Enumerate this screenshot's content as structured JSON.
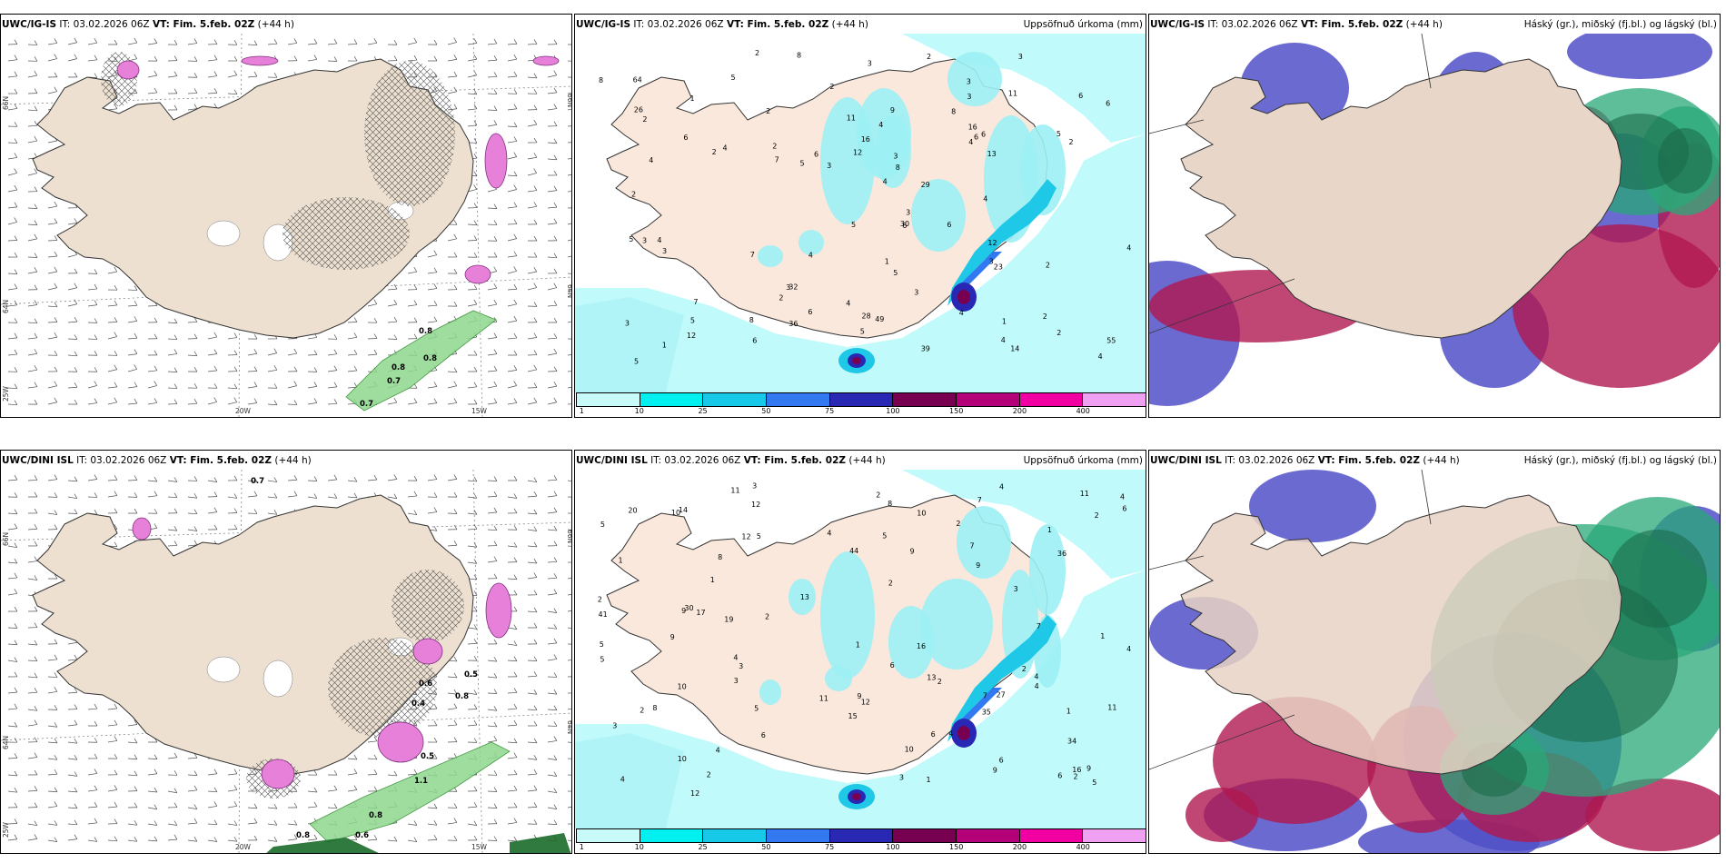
{
  "panels": [
    {
      "model": "UWC/IG-IS",
      "it_label": "IT: 03.02.2026 06Z",
      "vt_label": "VT: Fim. 5.feb. 02Z",
      "lead": "(+44 h)",
      "right_title": ""
    },
    {
      "model": "UWC/IG-IS",
      "it_label": "IT: 03.02.2026 06Z",
      "vt_label": "VT: Fim. 5.feb. 02Z",
      "lead": "(+44 h)",
      "right_title": "Uppsöfnuð úrkoma (mm)"
    },
    {
      "model": "UWC/IG-IS",
      "it_label": "IT: 03.02.2026 06Z",
      "vt_label": "VT: Fim. 5.feb. 02Z",
      "lead": "(+44 h)",
      "right_title": "Háský (gr.), miðský (fj.bl.) og lágský (bl.)"
    },
    {
      "model": "UWC/DINI ISL",
      "it_label": "IT: 03.02.2026 06Z",
      "vt_label": "VT: Fim. 5.feb. 02Z",
      "lead": "(+44 h)",
      "right_title": ""
    },
    {
      "model": "UWC/DINI ISL",
      "it_label": "IT: 03.02.2026 06Z",
      "vt_label": "VT: Fim. 5.feb. 02Z",
      "lead": "(+44 h)",
      "right_title": "Uppsöfnuð úrkoma (mm)"
    },
    {
      "model": "UWC/DINI ISL",
      "it_label": "IT: 03.02.2026 06Z",
      "vt_label": "VT: Fim. 5.feb. 02Z",
      "lead": "(+44 h)",
      "right_title": "Háský (gr.), miðský (fj.bl.) og lágský (bl.)"
    }
  ],
  "axis_labels": {
    "lat66": "66N",
    "lat64": "64N",
    "lon25": "25W",
    "lon20": "20W",
    "lon15": "15W"
  },
  "legend": {
    "ticks": [
      "1",
      "10",
      "25",
      "50",
      "75",
      "100",
      "150",
      "200",
      "400"
    ],
    "colors": [
      "#c8fafa",
      "#00f0f0",
      "#18c8e8",
      "#3278f0",
      "#2828b4",
      "#780050",
      "#b40078",
      "#f000a0",
      "#f0a0f0"
    ]
  },
  "precip_values_top": [
    "1",
    "2",
    "3",
    "1",
    "2",
    "2",
    "2",
    "3",
    "1",
    "2",
    "4",
    "7",
    "6",
    "3",
    "4",
    "2",
    "3",
    "3",
    "5",
    "6",
    "8",
    "12",
    "5",
    "6",
    "23",
    "3",
    "6",
    "4",
    "2",
    "3",
    "2",
    "4",
    "9",
    "5",
    "30",
    "39",
    "28",
    "13",
    "4",
    "4",
    "2",
    "32",
    "2",
    "36",
    "4",
    "5",
    "16",
    "49",
    "4",
    "55",
    "2",
    "12",
    "64",
    "4",
    "7",
    "1",
    "5",
    "3",
    "29",
    "12",
    "8",
    "16",
    "6",
    "6",
    "14",
    "4",
    "3",
    "5",
    "6",
    "3",
    "4",
    "6",
    "4",
    "7",
    "8",
    "5",
    "8",
    "11",
    "11",
    "4",
    "3",
    "3",
    "6",
    "8",
    "5",
    "2",
    "6",
    "2",
    "26",
    "3",
    "5"
  ],
  "precip_values_bottom": [
    "1",
    "1",
    "1",
    "4",
    "3",
    "5",
    "2",
    "1",
    "4",
    "2",
    "3",
    "4",
    "9",
    "5",
    "10",
    "10",
    "2",
    "4",
    "4",
    "4",
    "3",
    "2",
    "2",
    "5",
    "9",
    "2",
    "30",
    "41",
    "1",
    "13",
    "36",
    "2",
    "1",
    "1",
    "11",
    "12",
    "34",
    "10",
    "9",
    "9",
    "5",
    "4",
    "6",
    "8",
    "9",
    "2",
    "3",
    "15",
    "44",
    "7",
    "27",
    "16",
    "11",
    "11",
    "13",
    "12",
    "12",
    "14",
    "20",
    "17",
    "11",
    "10",
    "6",
    "5",
    "19",
    "4",
    "6",
    "2",
    "8",
    "7",
    "9",
    "4",
    "6",
    "8",
    "6",
    "3",
    "9",
    "4",
    "6",
    "2",
    "2",
    "5",
    "16",
    "12",
    "7",
    "10",
    "5",
    "7",
    "3",
    "35"
  ],
  "contour_values_top": [
    "0.8",
    "0.8",
    "0.7",
    "0.8",
    "0.7"
  ],
  "contour_values_bottom": [
    "0.7",
    "0.8",
    "0.6",
    "0.8",
    "1.1",
    "0.5",
    "0.5",
    "0.8",
    "0.4",
    "0.6"
  ]
}
